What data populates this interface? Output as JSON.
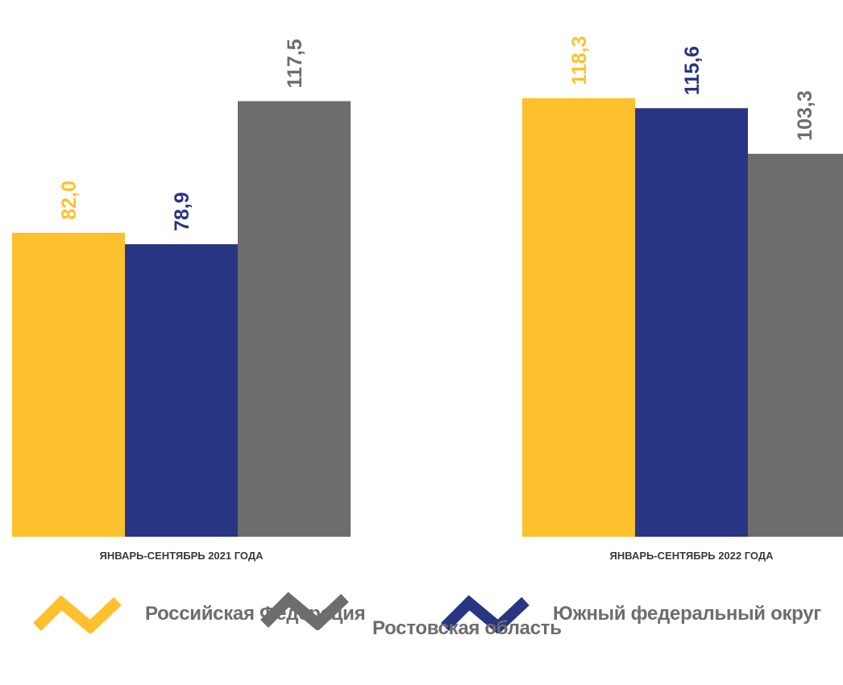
{
  "chart_data": {
    "type": "bar",
    "categories": [
      "ЯНВАРЬ-СЕНТЯБРЬ 2021 ГОДА",
      "ЯНВАРЬ-СЕНТЯБРЬ 2022 ГОДА"
    ],
    "series": [
      {
        "name": "Российская Федерация",
        "values": [
          82.0,
          118.3
        ],
        "labels": [
          "82,0",
          "118,3"
        ],
        "color": "#FDC12E"
      },
      {
        "name": "Южный федеральный округ",
        "values": [
          78.9,
          115.6
        ],
        "labels": [
          "78,9",
          "115,6"
        ],
        "color": "#283583"
      },
      {
        "name": "Ростовская область",
        "values": [
          117.5,
          103.3
        ],
        "labels": [
          "117,5",
          "103,3"
        ],
        "color": "#6D6D6D"
      }
    ],
    "legend": "bottom",
    "grid": false
  },
  "legend": {
    "items": [
      {
        "label": "Российская Федерация",
        "color": "#FDC12E",
        "icon": "zigzag-line-icon"
      },
      {
        "label": "Южный федеральный округ",
        "color": "#283583",
        "icon": "zigzag-line-icon"
      },
      {
        "label": "Ростовская область",
        "color": "#6D6D6D",
        "icon": "zigzag-line-icon"
      }
    ]
  }
}
